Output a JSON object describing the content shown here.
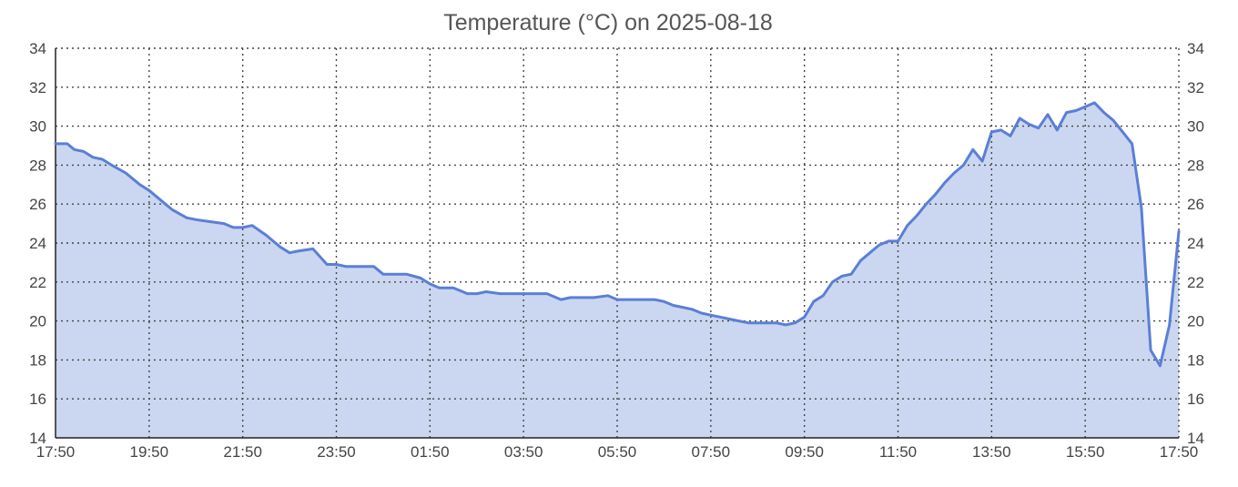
{
  "chart_data": {
    "type": "area",
    "title": "Temperature (°C) on 2025-08-18",
    "xlabel": "",
    "ylabel": "",
    "x_ticks": [
      "17:50",
      "19:50",
      "21:50",
      "23:50",
      "01:50",
      "03:50",
      "05:50",
      "07:50",
      "09:50",
      "11:50",
      "13:50",
      "15:50",
      "17:50"
    ],
    "y_ticks": [
      14,
      16,
      18,
      20,
      22,
      24,
      26,
      28,
      30,
      32,
      34
    ],
    "ylim": [
      14,
      34
    ],
    "xlim_hours": [
      0,
      24
    ],
    "grid": true,
    "legend": "none",
    "line_color": "#5b7fd6",
    "fill_color": "#cbd7f0",
    "series": [
      {
        "x": [
          0,
          0.25,
          0.4,
          0.6,
          0.8,
          1.0,
          1.2,
          1.5,
          1.8,
          2.0,
          2.2,
          2.5,
          2.8,
          3.0,
          3.3,
          3.6,
          3.8,
          4.0,
          4.2,
          4.5,
          4.8,
          5.0,
          5.2,
          5.5,
          5.8,
          6.0,
          6.2,
          6.5,
          6.8,
          7.0,
          7.2,
          7.5,
          7.8,
          8.0,
          8.2,
          8.5,
          8.8,
          9.0,
          9.2,
          9.5,
          9.8,
          10.0,
          10.2,
          10.5,
          10.8,
          11.0,
          11.2,
          11.5,
          11.8,
          12.0,
          12.2,
          12.5,
          12.8,
          13.0,
          13.2,
          13.4,
          13.6,
          13.8,
          14.0,
          14.2,
          14.4,
          14.6,
          14.8,
          15.0,
          15.2,
          15.4,
          15.6,
          15.8,
          16.0,
          16.2,
          16.4,
          16.6,
          16.8,
          17.0,
          17.2,
          17.4,
          17.6,
          17.8,
          18.0,
          18.2,
          18.4,
          18.6,
          18.8,
          19.0,
          19.2,
          19.4,
          19.6,
          19.8,
          20.0,
          20.2,
          20.4,
          20.6,
          20.8,
          21.0,
          21.2,
          21.4,
          21.6,
          21.8,
          22.0,
          22.2,
          22.4,
          22.6,
          22.8,
          23.0,
          23.2,
          23.4,
          23.6,
          23.8,
          24.0
        ],
        "y": [
          29.1,
          29.1,
          28.8,
          28.7,
          28.4,
          28.3,
          28.0,
          27.6,
          27.0,
          26.7,
          26.3,
          25.7,
          25.3,
          25.2,
          25.1,
          25.0,
          24.8,
          24.8,
          24.9,
          24.4,
          23.8,
          23.5,
          23.6,
          23.7,
          22.9,
          22.9,
          22.8,
          22.8,
          22.8,
          22.4,
          22.4,
          22.4,
          22.2,
          21.9,
          21.7,
          21.7,
          21.4,
          21.4,
          21.5,
          21.4,
          21.4,
          21.4,
          21.4,
          21.4,
          21.1,
          21.2,
          21.2,
          21.2,
          21.3,
          21.1,
          21.1,
          21.1,
          21.1,
          21.0,
          20.8,
          20.7,
          20.6,
          20.4,
          20.3,
          20.2,
          20.1,
          20.0,
          19.9,
          19.9,
          19.9,
          19.9,
          19.8,
          19.9,
          20.2,
          21.0,
          21.3,
          22.0,
          22.3,
          22.4,
          23.1,
          23.5,
          23.9,
          24.1,
          24.1,
          24.9,
          25.4,
          26.0,
          26.5,
          27.1,
          27.6,
          28.0,
          28.8,
          28.2,
          29.7,
          29.8,
          29.5,
          30.4,
          30.1,
          29.9,
          30.6,
          29.8,
          30.7,
          30.8,
          31.0,
          31.2,
          30.7,
          30.3,
          29.7,
          29.1,
          25.8,
          18.5,
          17.7,
          19.8,
          24.6
        ]
      }
    ]
  }
}
